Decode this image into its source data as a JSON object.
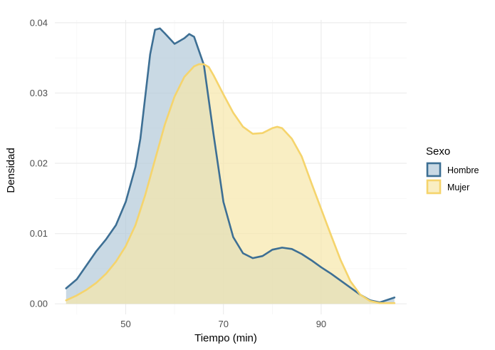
{
  "chart_data": {
    "type": "area",
    "title": "",
    "xlabel": "Tiempo (min)",
    "ylabel": "Densidad",
    "xlim": [
      35.5,
      107.5
    ],
    "ylim": [
      -0.0015,
      0.0404
    ],
    "x_ticks": [
      50,
      70,
      90
    ],
    "x_tick_labels": [
      "50",
      "70",
      "90"
    ],
    "x_minor_gridlines": [
      40,
      60,
      80,
      100
    ],
    "y_ticks": [
      0.0,
      0.01,
      0.02,
      0.03,
      0.04
    ],
    "y_tick_labels": [
      "0.00",
      "0.01",
      "0.02",
      "0.03",
      "0.04"
    ],
    "y_minor_gridlines": [
      0.005,
      0.015,
      0.025,
      0.035
    ],
    "grid": true,
    "legend": {
      "title": "Sexo",
      "position": "right",
      "entries": [
        "Hombre",
        "Mujer"
      ]
    },
    "series": [
      {
        "name": "Hombre",
        "stroke": "#3d6f94",
        "fill": "#b2c9d9",
        "x": [
          37.8,
          40,
          42,
          44,
          46,
          48,
          50,
          52,
          53,
          55,
          56,
          57,
          58,
          60,
          62,
          63,
          64,
          66,
          68,
          70,
          72,
          74,
          76,
          78,
          80,
          82,
          84,
          86,
          88,
          90,
          92,
          94,
          96,
          98,
          100,
          102,
          105
        ],
        "y": [
          0.0022,
          0.0035,
          0.0055,
          0.0075,
          0.0092,
          0.0112,
          0.0145,
          0.0195,
          0.0235,
          0.0355,
          0.039,
          0.0392,
          0.0385,
          0.037,
          0.0378,
          0.0384,
          0.038,
          0.034,
          0.024,
          0.0145,
          0.0095,
          0.0072,
          0.0065,
          0.0068,
          0.0077,
          0.008,
          0.0078,
          0.0071,
          0.0062,
          0.0052,
          0.0043,
          0.0033,
          0.0023,
          0.0013,
          0.0005,
          0.0002,
          0.0009
        ]
      },
      {
        "name": "Mujer",
        "stroke": "#f5d46c",
        "fill": "#f7e7a9",
        "x": [
          37.8,
          40,
          42,
          44,
          46,
          48,
          50,
          52,
          54,
          56,
          58,
          60,
          62,
          64,
          65,
          66,
          67,
          68,
          70,
          72,
          74,
          76,
          78,
          80,
          81,
          82,
          84,
          86,
          88,
          90,
          92,
          94,
          96,
          98,
          100,
          102,
          105
        ],
        "y": [
          0.0005,
          0.0012,
          0.002,
          0.003,
          0.0043,
          0.006,
          0.0082,
          0.0112,
          0.0155,
          0.0205,
          0.0255,
          0.0295,
          0.0323,
          0.0338,
          0.0341,
          0.0341,
          0.0337,
          0.0325,
          0.0298,
          0.0272,
          0.0252,
          0.0242,
          0.0243,
          0.025,
          0.0252,
          0.025,
          0.0235,
          0.021,
          0.0172,
          0.0135,
          0.0098,
          0.0062,
          0.0032,
          0.0013,
          0.0004,
          0.0001,
          0.0001
        ]
      }
    ]
  }
}
